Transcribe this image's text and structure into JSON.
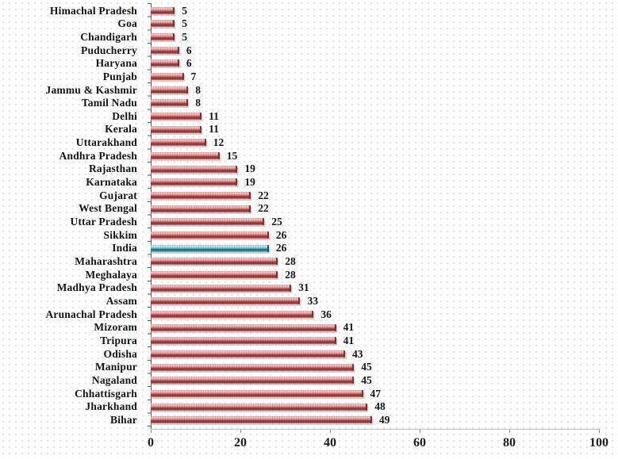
{
  "chart_data": {
    "type": "bar",
    "orientation": "horizontal",
    "title": "",
    "xlabel": "",
    "ylabel": "",
    "categories": [
      "Himachal Pradesh",
      "Goa",
      "Chandigarh",
      "Puducherry",
      "Haryana",
      "Punjab",
      "Jammu & Kashmir",
      "Tamil Nadu",
      "Delhi",
      "Kerala",
      "Uttarakhand",
      "Andhra Pradesh",
      "Rajasthan",
      "Karnataka",
      "Gujarat",
      "West Bengal",
      "Uttar Pradesh",
      "Sikkim",
      "India",
      "Maharashtra",
      "Meghalaya",
      "Madhya Pradesh",
      "Assam",
      "Arunachal Pradesh",
      "Mizoram",
      "Tripura",
      "Odisha",
      "Manipur",
      "Nagaland",
      "Chhattisgarh",
      "Jharkhand",
      "Bihar"
    ],
    "values": [
      5,
      5,
      5,
      6,
      6,
      7,
      8,
      8,
      11,
      11,
      12,
      15,
      19,
      19,
      22,
      22,
      25,
      26,
      26,
      28,
      28,
      31,
      33,
      36,
      41,
      41,
      43,
      45,
      45,
      47,
      48,
      49
    ],
    "highlight_category": "India",
    "highlight_index": 18,
    "value_labels_shown": true,
    "xlim": [
      0,
      100
    ],
    "x_ticks": [
      0,
      20,
      40,
      60,
      80,
      100
    ],
    "grid": false,
    "legend": null,
    "colors": {
      "bar_fill": "#DD8888",
      "bar_edge": "#8A3535",
      "highlight_bar_fill": "#64C6D8",
      "highlight_bar_edge": "#1F6F7E",
      "text": "#141414",
      "y_axis_line": "#5A5A5A",
      "x_axis_line": "#BFBFBF",
      "background": "#FFFFFF",
      "background_dots": "#D2BEC3"
    }
  }
}
